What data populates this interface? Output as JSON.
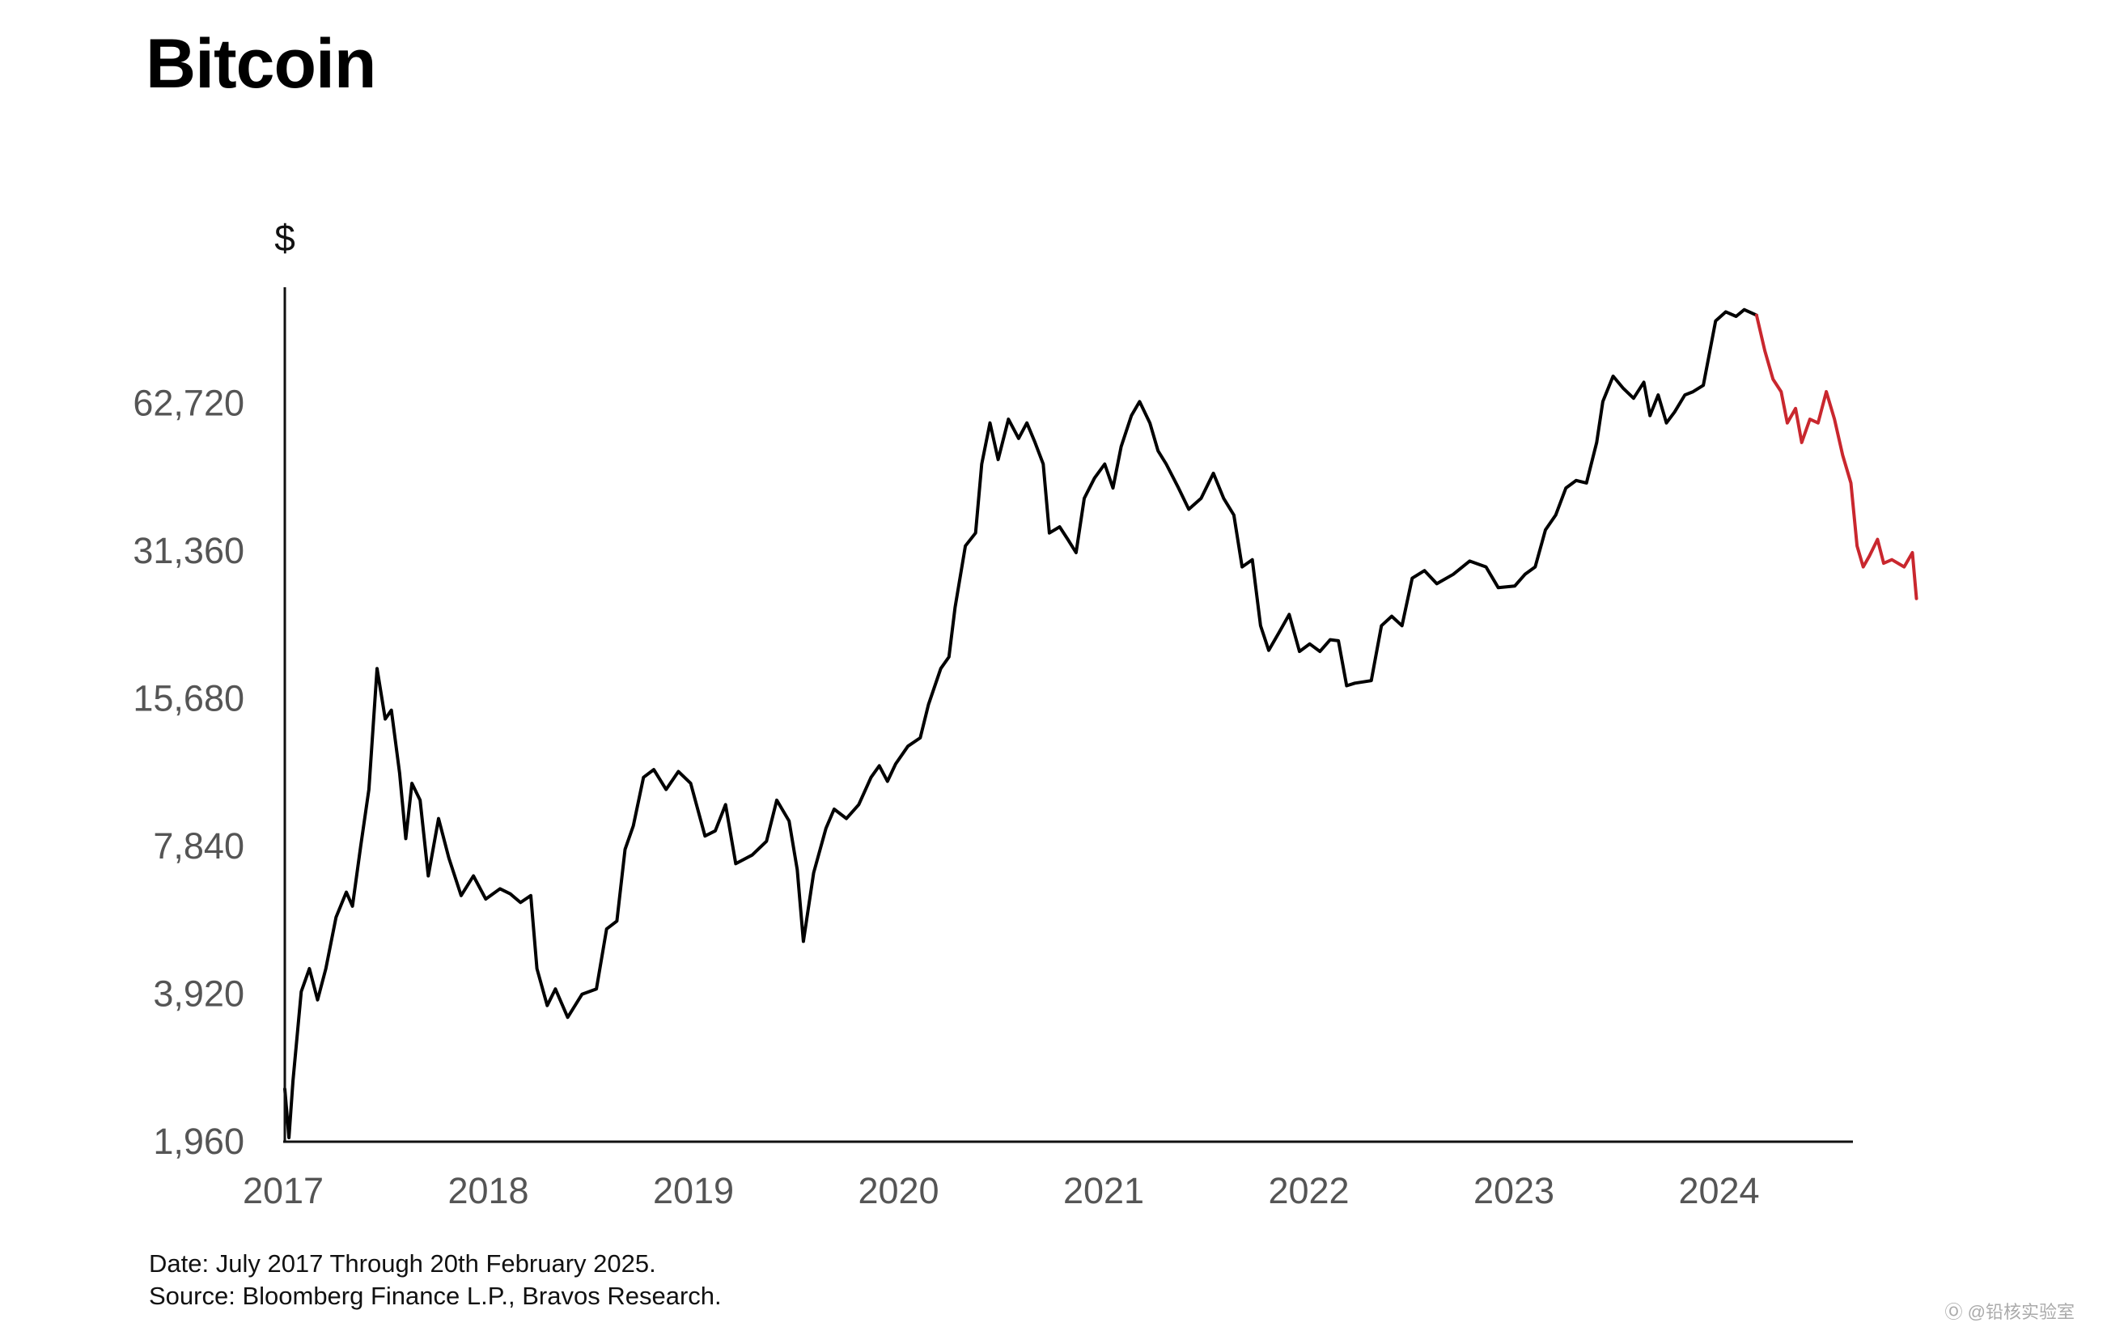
{
  "chart_data": {
    "type": "line",
    "title": "Bitcoin",
    "ylabel": "$",
    "xlabel": "",
    "y_scale": "log",
    "ylim": [
      1960,
      125000
    ],
    "xlim": [
      2017.0,
      2024.65
    ],
    "y_ticks": [
      {
        "value": 1960,
        "label": "1,960"
      },
      {
        "value": 3920,
        "label": "3,920"
      },
      {
        "value": 7840,
        "label": "7,840"
      },
      {
        "value": 15680,
        "label": "15,680"
      },
      {
        "value": 31360,
        "label": "31,360"
      },
      {
        "value": 62720,
        "label": "62,720"
      }
    ],
    "x_ticks": [
      {
        "value": 2017,
        "label": "2017"
      },
      {
        "value": 2018,
        "label": "2018"
      },
      {
        "value": 2019,
        "label": "2019"
      },
      {
        "value": 2020,
        "label": "2020"
      },
      {
        "value": 2021,
        "label": "2021"
      },
      {
        "value": 2022,
        "label": "2022"
      },
      {
        "value": 2023,
        "label": "2023"
      },
      {
        "value": 2024,
        "label": "2024"
      }
    ],
    "grid": false,
    "series": [
      {
        "color": "#000000",
        "points": [
          [
            2017.0,
            2500
          ],
          [
            2017.02,
            1990
          ],
          [
            2017.04,
            2600
          ],
          [
            2017.08,
            3950
          ],
          [
            2017.12,
            4400
          ],
          [
            2017.16,
            3800
          ],
          [
            2017.2,
            4400
          ],
          [
            2017.25,
            5600
          ],
          [
            2017.3,
            6300
          ],
          [
            2017.33,
            5900
          ],
          [
            2017.37,
            7800
          ],
          [
            2017.41,
            10200
          ],
          [
            2017.45,
            18000
          ],
          [
            2017.49,
            14200
          ],
          [
            2017.52,
            14800
          ],
          [
            2017.56,
            11000
          ],
          [
            2017.59,
            8100
          ],
          [
            2017.62,
            10500
          ],
          [
            2017.66,
            9700
          ],
          [
            2017.7,
            6800
          ],
          [
            2017.75,
            8900
          ],
          [
            2017.8,
            7400
          ],
          [
            2017.86,
            6200
          ],
          [
            2017.92,
            6800
          ],
          [
            2017.98,
            6100
          ],
          [
            2018.05,
            6400
          ],
          [
            2018.1,
            6250
          ],
          [
            2018.15,
            6000
          ],
          [
            2018.2,
            6200
          ],
          [
            2018.23,
            4400
          ],
          [
            2018.28,
            3700
          ],
          [
            2018.32,
            4000
          ],
          [
            2018.38,
            3500
          ],
          [
            2018.45,
            3900
          ],
          [
            2018.52,
            4000
          ],
          [
            2018.57,
            5300
          ],
          [
            2018.62,
            5500
          ],
          [
            2018.66,
            7700
          ],
          [
            2018.7,
            8600
          ],
          [
            2018.75,
            10800
          ],
          [
            2018.8,
            11200
          ],
          [
            2018.86,
            10200
          ],
          [
            2018.92,
            11100
          ],
          [
            2018.98,
            10500
          ],
          [
            2019.05,
            8200
          ],
          [
            2019.1,
            8400
          ],
          [
            2019.15,
            9500
          ],
          [
            2019.2,
            7200
          ],
          [
            2019.28,
            7500
          ],
          [
            2019.35,
            8000
          ],
          [
            2019.4,
            9700
          ],
          [
            2019.46,
            8800
          ],
          [
            2019.5,
            7000
          ],
          [
            2019.53,
            5000
          ],
          [
            2019.58,
            6900
          ],
          [
            2019.64,
            8500
          ],
          [
            2019.68,
            9300
          ],
          [
            2019.74,
            8900
          ],
          [
            2019.8,
            9500
          ],
          [
            2019.86,
            10800
          ],
          [
            2019.9,
            11400
          ],
          [
            2019.94,
            10600
          ],
          [
            2019.98,
            11500
          ],
          [
            2020.04,
            12500
          ],
          [
            2020.1,
            13000
          ],
          [
            2020.14,
            15200
          ],
          [
            2020.2,
            18000
          ],
          [
            2020.24,
            19000
          ],
          [
            2020.27,
            24000
          ],
          [
            2020.32,
            32000
          ],
          [
            2020.37,
            34000
          ],
          [
            2020.4,
            47000
          ],
          [
            2020.44,
            57000
          ],
          [
            2020.48,
            48000
          ],
          [
            2020.53,
            58000
          ],
          [
            2020.58,
            53000
          ],
          [
            2020.62,
            57000
          ],
          [
            2020.66,
            52000
          ],
          [
            2020.7,
            47000
          ],
          [
            2020.73,
            34000
          ],
          [
            2020.78,
            35000
          ],
          [
            2020.82,
            33000
          ],
          [
            2020.86,
            31000
          ],
          [
            2020.9,
            40000
          ],
          [
            2020.95,
            44000
          ],
          [
            2021.0,
            47000
          ],
          [
            2021.04,
            42000
          ],
          [
            2021.08,
            51000
          ],
          [
            2021.13,
            59000
          ],
          [
            2021.17,
            63000
          ],
          [
            2021.22,
            57000
          ],
          [
            2021.26,
            50000
          ],
          [
            2021.3,
            47000
          ],
          [
            2021.36,
            42000
          ],
          [
            2021.41,
            38000
          ],
          [
            2021.47,
            40000
          ],
          [
            2021.53,
            45000
          ],
          [
            2021.58,
            40000
          ],
          [
            2021.63,
            37000
          ],
          [
            2021.67,
            29000
          ],
          [
            2021.72,
            30000
          ],
          [
            2021.76,
            22000
          ],
          [
            2021.8,
            19600
          ],
          [
            2021.85,
            21300
          ],
          [
            2021.9,
            23200
          ],
          [
            2021.95,
            19500
          ],
          [
            2022.0,
            20200
          ],
          [
            2022.05,
            19500
          ],
          [
            2022.1,
            20600
          ],
          [
            2022.14,
            20500
          ],
          [
            2022.18,
            16600
          ],
          [
            2022.22,
            16800
          ],
          [
            2022.3,
            17000
          ],
          [
            2022.35,
            22000
          ],
          [
            2022.4,
            23000
          ],
          [
            2022.45,
            22000
          ],
          [
            2022.5,
            27500
          ],
          [
            2022.56,
            28500
          ],
          [
            2022.62,
            26800
          ],
          [
            2022.7,
            28000
          ],
          [
            2022.78,
            29800
          ],
          [
            2022.86,
            29000
          ],
          [
            2022.92,
            26300
          ],
          [
            2023.0,
            26500
          ],
          [
            2023.05,
            28000
          ],
          [
            2023.1,
            29000
          ],
          [
            2023.15,
            34500
          ],
          [
            2023.2,
            37000
          ],
          [
            2023.25,
            42000
          ],
          [
            2023.3,
            43500
          ],
          [
            2023.35,
            43000
          ],
          [
            2023.4,
            52000
          ],
          [
            2023.43,
            63000
          ],
          [
            2023.48,
            71000
          ],
          [
            2023.53,
            67000
          ],
          [
            2023.58,
            64000
          ],
          [
            2023.63,
            69000
          ],
          [
            2023.66,
            59000
          ],
          [
            2023.7,
            65000
          ],
          [
            2023.74,
            57000
          ],
          [
            2023.78,
            60000
          ],
          [
            2023.83,
            65000
          ],
          [
            2023.87,
            66000
          ],
          [
            2023.92,
            68000
          ],
          [
            2023.98,
            92000
          ],
          [
            2024.03,
            96000
          ],
          [
            2024.08,
            94000
          ],
          [
            2024.12,
            97000
          ],
          [
            2024.18,
            94500
          ]
        ]
      },
      {
        "color": "#c9272e",
        "points": [
          [
            2024.18,
            94500
          ],
          [
            2024.22,
            80000
          ],
          [
            2024.26,
            70000
          ],
          [
            2024.3,
            66000
          ],
          [
            2024.33,
            57000
          ],
          [
            2024.37,
            61000
          ],
          [
            2024.4,
            52000
          ],
          [
            2024.44,
            58000
          ],
          [
            2024.48,
            57000
          ],
          [
            2024.52,
            66000
          ],
          [
            2024.56,
            58000
          ],
          [
            2024.6,
            49000
          ],
          [
            2024.64,
            43000
          ],
          [
            2024.67,
            32000
          ],
          [
            2024.7,
            29000
          ],
          [
            2024.73,
            30500
          ],
          [
            2024.77,
            33000
          ],
          [
            2024.8,
            29500
          ],
          [
            2024.84,
            30000
          ],
          [
            2024.87,
            29500
          ],
          [
            2024.9,
            29000
          ],
          [
            2024.94,
            31000
          ],
          [
            2024.96,
            25000
          ]
        ]
      }
    ]
  },
  "footnote": {
    "date": "Date: July 2017 Through 20th February 2025.",
    "source": "Source: Bloomberg Finance L.P., Bravos Research."
  },
  "watermark": "Ⓞ @铅核实验室"
}
